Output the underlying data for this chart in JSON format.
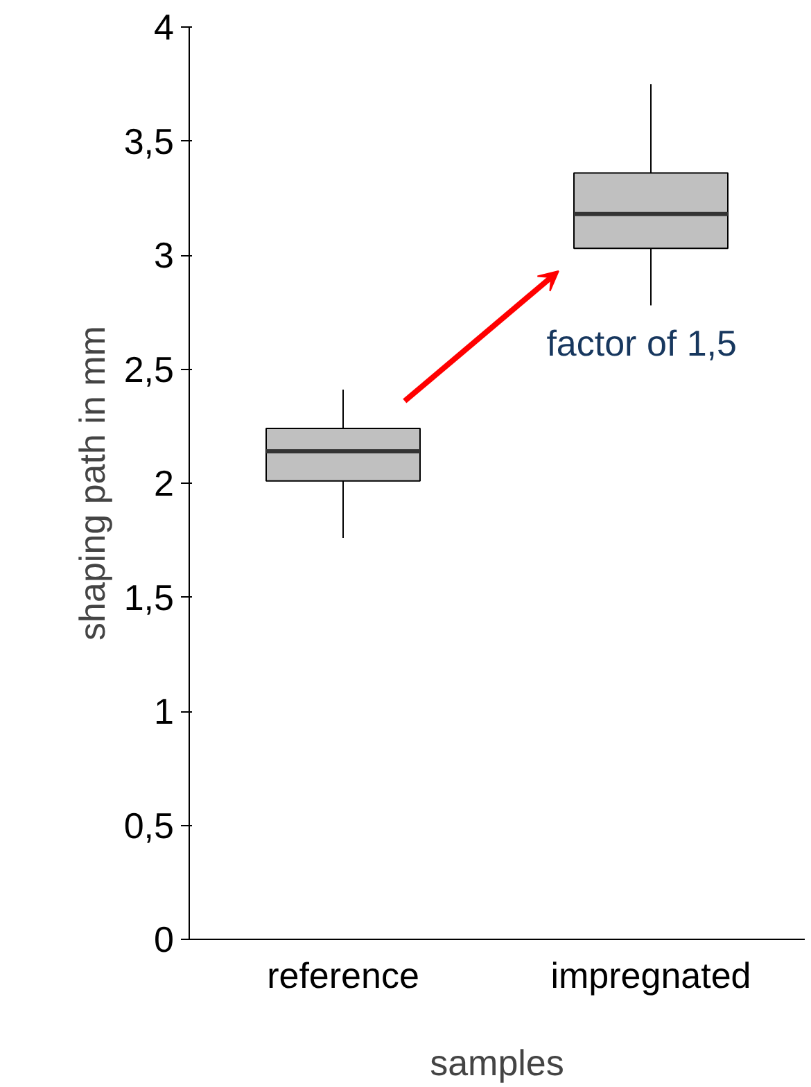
{
  "chart_data": {
    "type": "box",
    "xlabel": "samples",
    "ylabel": "shaping path in mm",
    "categories": [
      "reference",
      "impregnated"
    ],
    "boxes": [
      {
        "low": 1.76,
        "q1": 2.01,
        "median": 2.14,
        "q3": 2.24,
        "high": 2.41
      },
      {
        "low": 2.78,
        "q1": 3.03,
        "median": 3.18,
        "q3": 3.36,
        "high": 3.75
      }
    ],
    "color": "#c0c0c0",
    "ylim": [
      0,
      4
    ],
    "yticks": [
      0,
      {
        "value": 0.5,
        "label": "0,5"
      },
      1,
      {
        "value": 1.5,
        "label": "1,5"
      },
      2,
      {
        "value": 2.5,
        "label": "2,5"
      },
      3,
      {
        "value": 3.5,
        "label": "3,5"
      },
      4
    ],
    "annotations": [
      "factor of 1,5"
    ],
    "grid": false
  }
}
